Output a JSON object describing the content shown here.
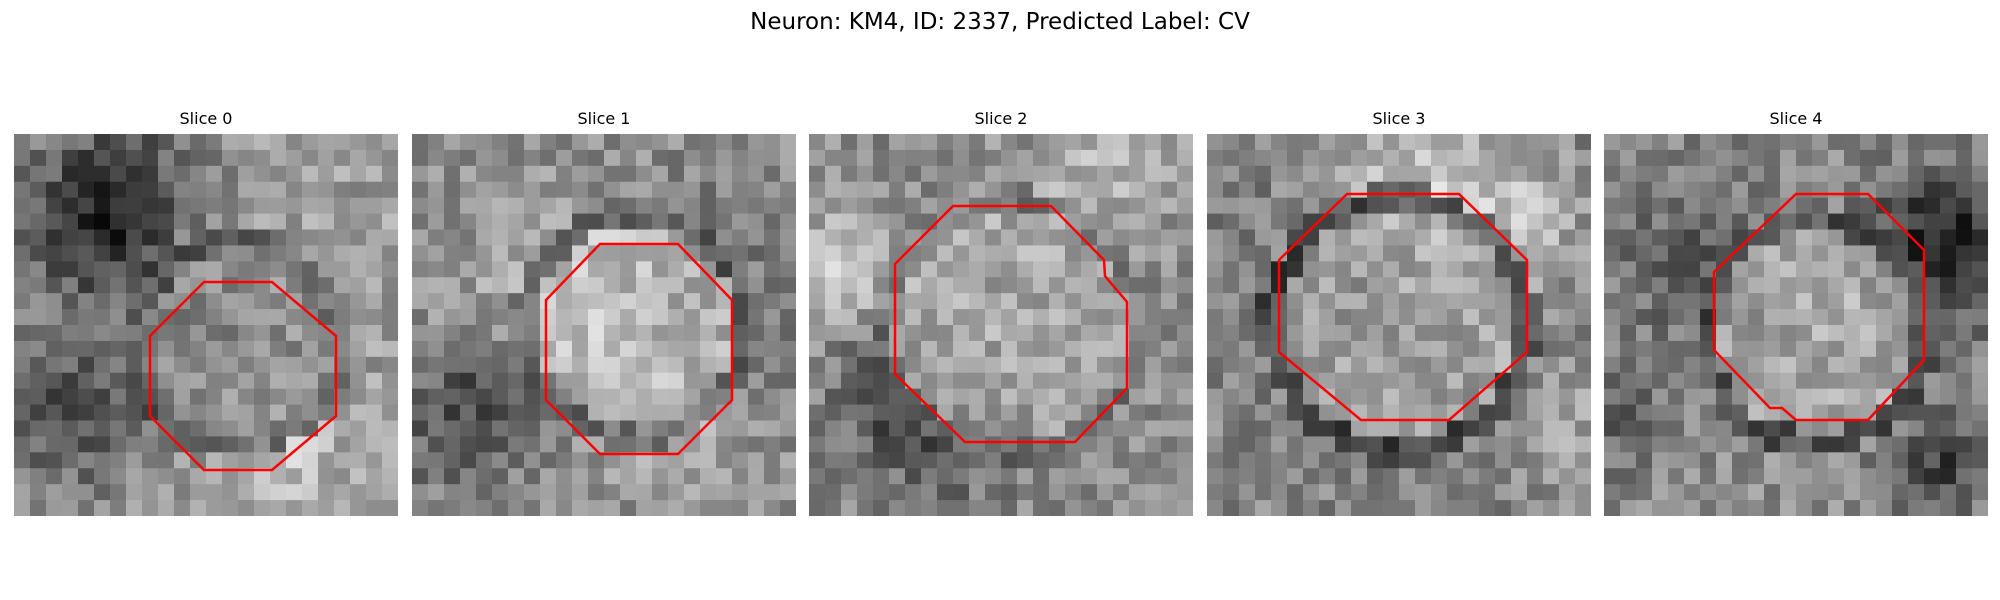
{
  "figure": {
    "suptitle": "Neuron: KM4, ID: 2337, Predicted Label: CV",
    "contour_color": "#ff0000"
  },
  "panels": [
    {
      "title": "Slice 0"
    },
    {
      "title": "Slice 1"
    },
    {
      "title": "Slice 2"
    },
    {
      "title": "Slice 3"
    },
    {
      "title": "Slice 4"
    }
  ]
}
